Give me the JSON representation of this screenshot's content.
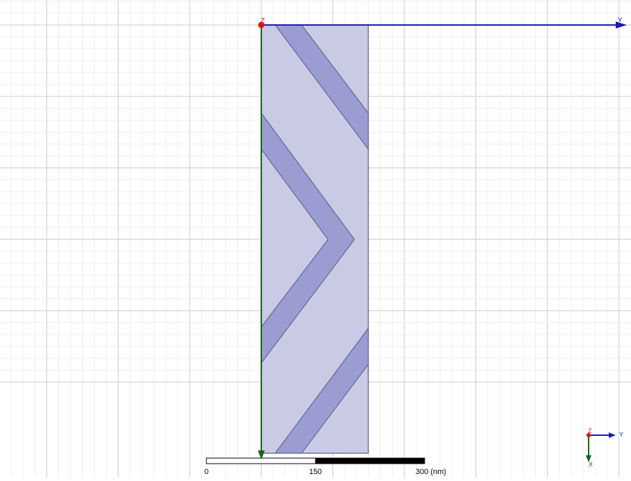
{
  "colors": {
    "background": "#ffffff",
    "grid_major": "#d6d6d6",
    "grid_minor": "#eeeeee",
    "body_fill": "#c9cae3",
    "body_stroke": "#3d3d7a",
    "stripe_fill": "#9b9dd2",
    "y_axis": "#1a1ab5",
    "x_axis": "#146414",
    "z_axis": "#e01010",
    "scale_dark": "#000000",
    "scale_light": "#ffffff"
  },
  "axes": {
    "y_label": "Y",
    "x_label": "X",
    "z_label": "Z"
  },
  "triad": {
    "y_label": "Y",
    "x_label": "X",
    "z_label": "Z"
  },
  "scale_bar": {
    "labels": [
      "0",
      "150",
      "300 (nm)"
    ]
  },
  "icons": {
    "origin": "origin-marker-icon",
    "triad": "axis-triad-icon"
  }
}
